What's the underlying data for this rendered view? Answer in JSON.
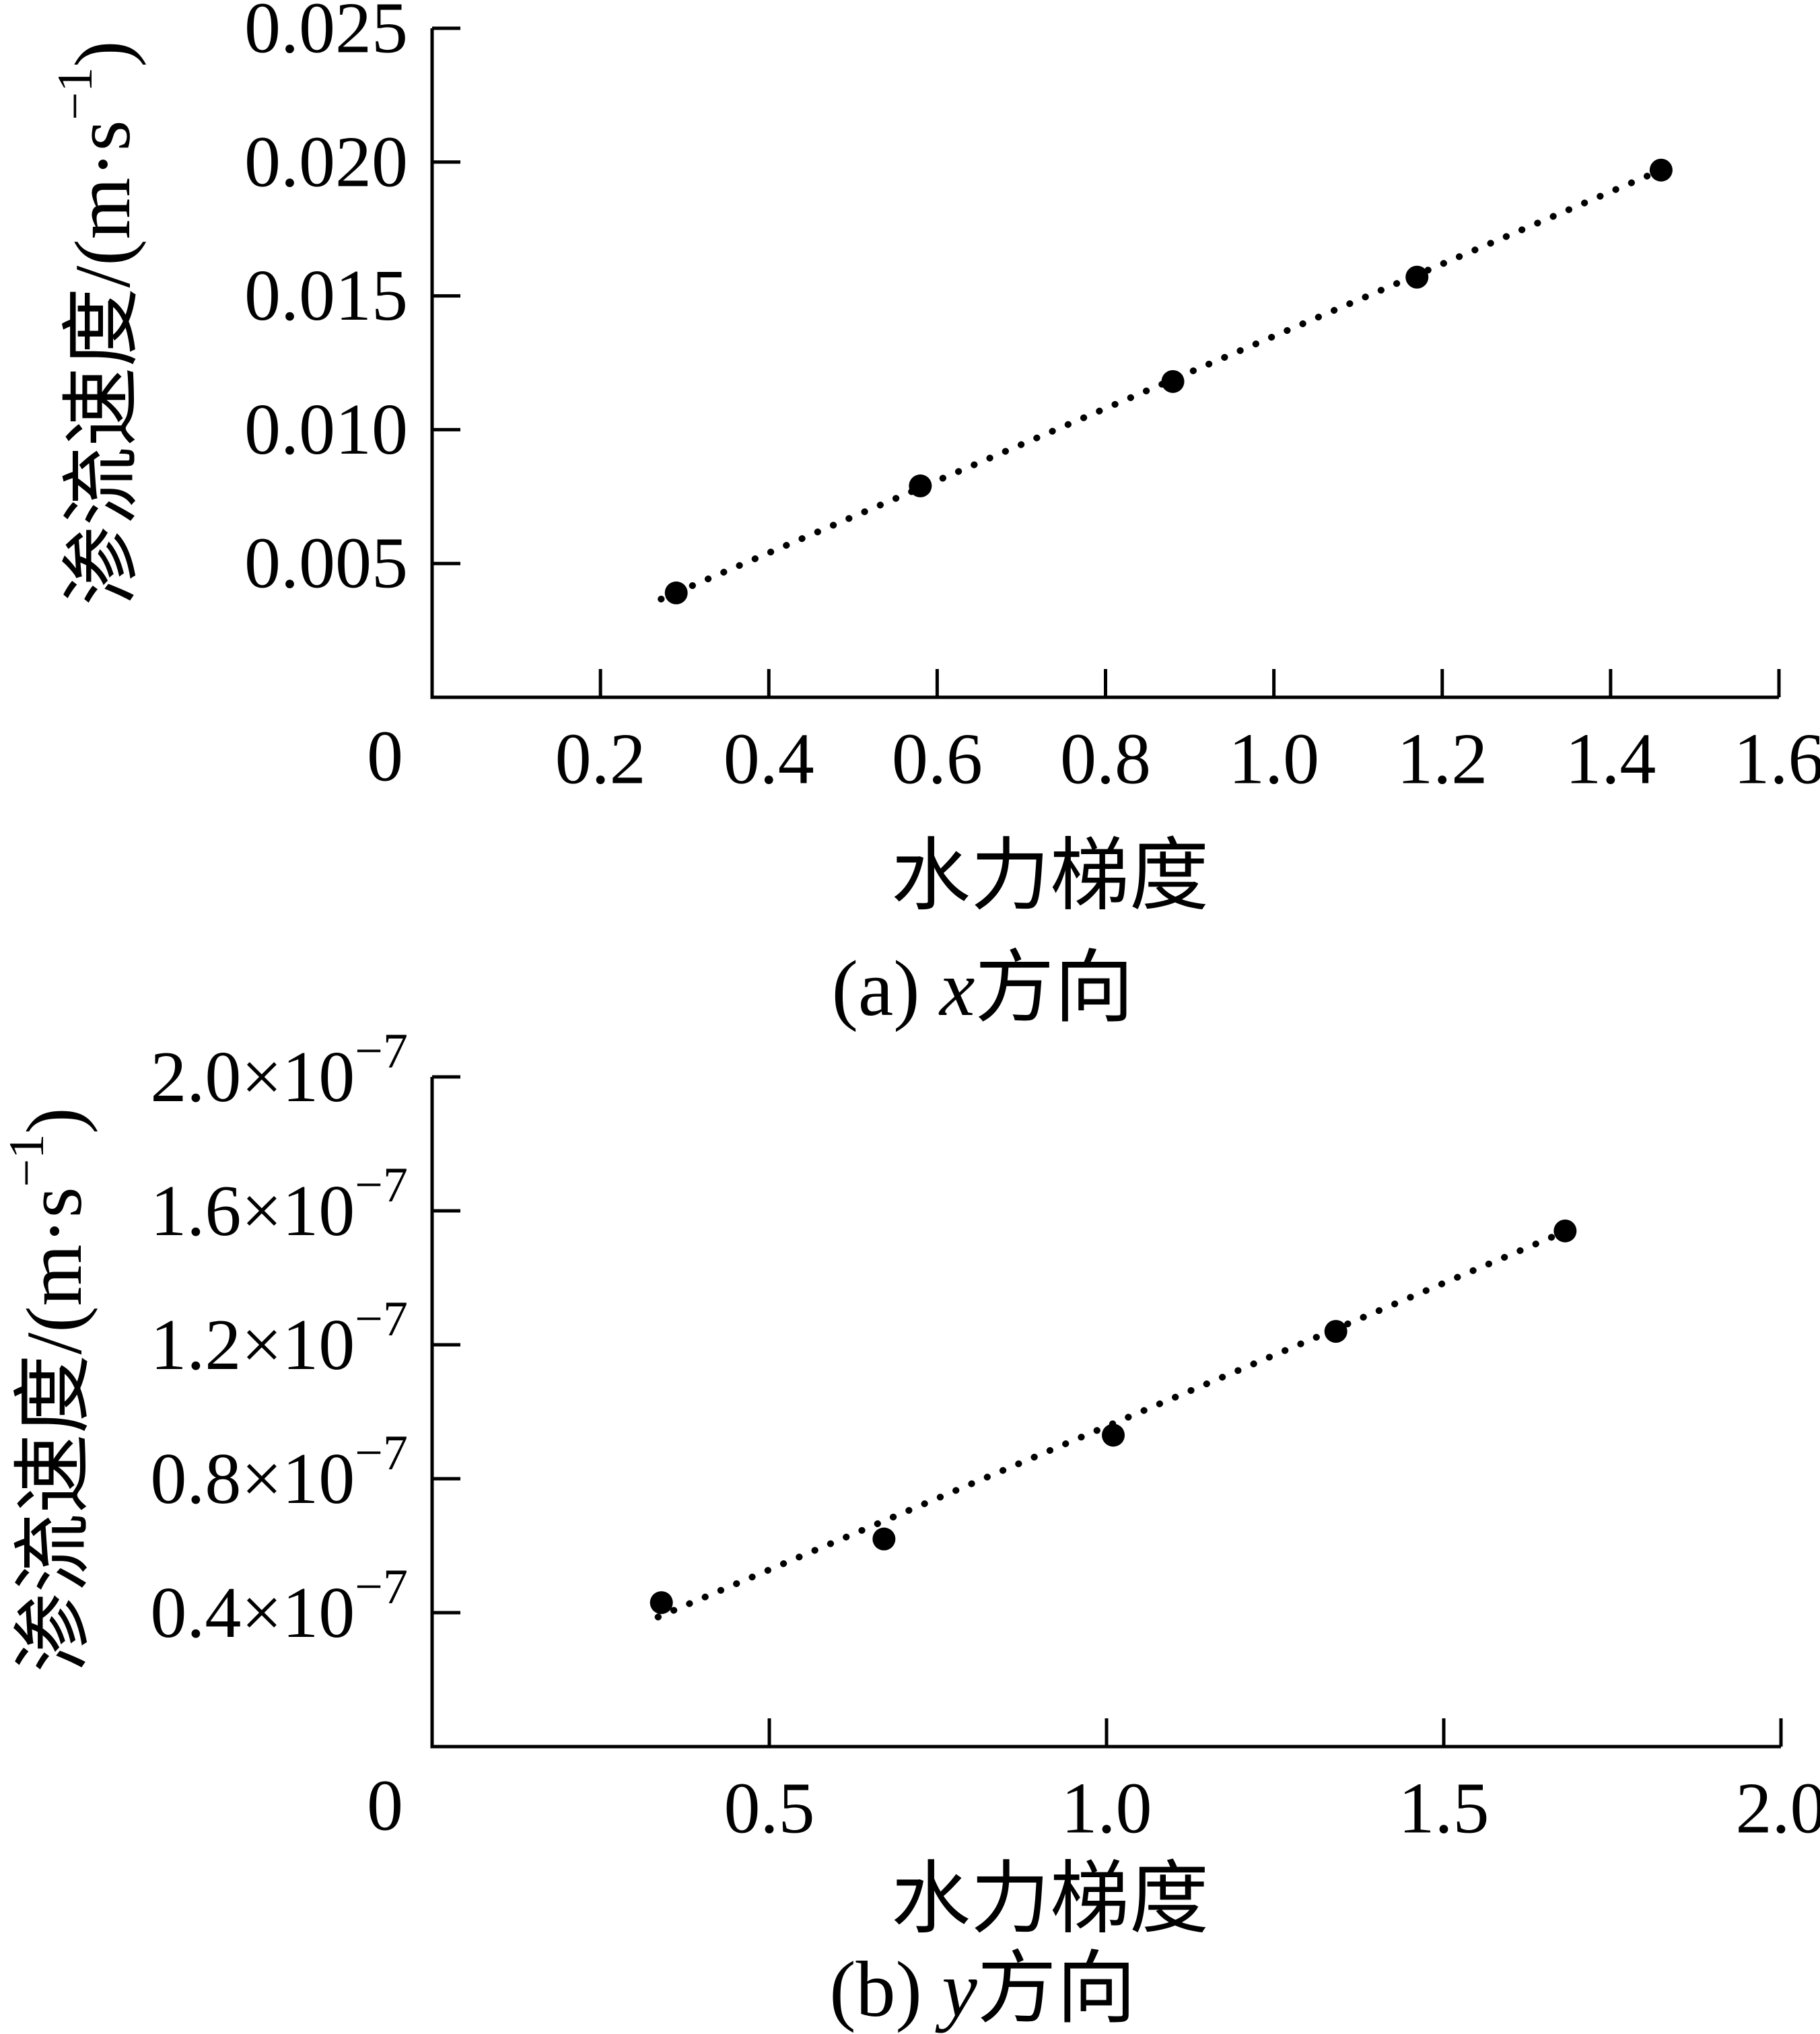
{
  "figure_bg": "#ffffff",
  "ink_color": "#000000",
  "chart_data": [
    {
      "type": "scatter",
      "panel": "a",
      "caption": {
        "pre": "(a) ",
        "italic": "x",
        "post": "方向"
      },
      "xlabel": "水力梯度",
      "ylabel": {
        "pre": "渗流速度/(m·s",
        "sup": "−1",
        "post": ")"
      },
      "xlim": [
        0,
        1.6
      ],
      "ylim": [
        0,
        0.025
      ],
      "origin_label": "0",
      "x_tick_values": [
        0.2,
        0.4,
        0.6,
        0.8,
        1.0,
        1.2,
        1.4,
        1.6
      ],
      "x_tick_labels": [
        "0.2",
        "0.4",
        "0.6",
        "0.8",
        "1.0",
        "1.2",
        "1.4",
        "1.6"
      ],
      "y_tick_values": [
        0.005,
        0.01,
        0.015,
        0.02,
        0.025
      ],
      "y_tick_labels": [
        "0.005",
        "0.010",
        "0.015",
        "0.020",
        "0.025"
      ],
      "series": [
        {
          "name": "seepage velocity vs hydraulic gradient (x direction)",
          "x": [
            0.29,
            0.58,
            0.88,
            1.17,
            1.46
          ],
          "y": [
            0.0039,
            0.0079,
            0.0118,
            0.0157,
            0.0197
          ]
        }
      ],
      "fit_line": {
        "x": [
          0.272,
          1.46
        ],
        "y": [
          0.00367,
          0.0197
        ]
      },
      "marker": "filled-circle",
      "line_style": "dotted",
      "grid": false,
      "legend": "none"
    },
    {
      "type": "scatter",
      "panel": "b",
      "caption": {
        "pre": "(b) ",
        "italic": "y",
        "post": "方向"
      },
      "xlabel": "水力梯度",
      "ylabel": {
        "pre": "渗流速度/(m·s",
        "sup": "−1",
        "post": ")"
      },
      "xlim": [
        0,
        2.0
      ],
      "ylim": [
        0,
        2.0
      ],
      "y_unit_factor": "1e-7",
      "origin_label": "0",
      "x_tick_values": [
        0.5,
        1.0,
        1.5,
        2.0
      ],
      "x_tick_labels": [
        "0.5",
        "1.0",
        "1.5",
        "2.0"
      ],
      "y_tick_values": [
        0.4,
        0.8,
        1.2,
        1.6,
        2.0
      ],
      "y_tick_labels": [
        {
          "m": "0.4",
          "e": "−7"
        },
        {
          "m": "0.8",
          "e": "−7"
        },
        {
          "m": "1.2",
          "e": "−7"
        },
        {
          "m": "1.6",
          "e": "−7"
        },
        {
          "m": "2.0",
          "e": "−7"
        }
      ],
      "series": [
        {
          "name": "seepage velocity vs hydraulic gradient (y direction)",
          "x": [
            0.34,
            0.67,
            1.01,
            1.34,
            1.68
          ],
          "y": [
            0.43,
            0.62,
            0.93,
            1.24,
            1.54
          ]
        }
      ],
      "fit_line": {
        "x": [
          0.335,
          1.682
        ],
        "y": [
          0.387,
          1.54
        ]
      },
      "marker": "filled-circle",
      "line_style": "dotted",
      "grid": false,
      "legend": "none"
    }
  ]
}
